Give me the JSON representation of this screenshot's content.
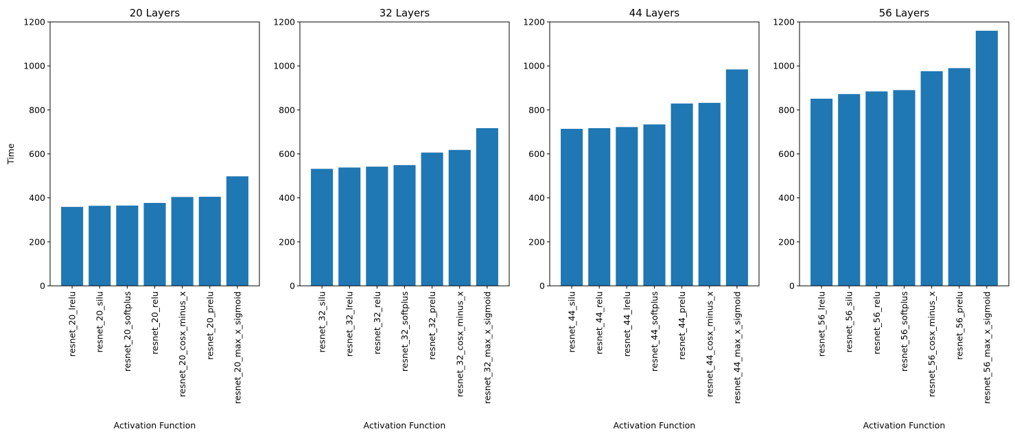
{
  "chart_data": [
    {
      "type": "bar",
      "title": "20 Layers",
      "xlabel": "Activation Function",
      "ylabel": "Time",
      "ylim": [
        0,
        1200
      ],
      "yticks": [
        0,
        200,
        400,
        600,
        800,
        1000,
        1200
      ],
      "grid": false,
      "color": "#1f77b4",
      "categories": [
        "resnet_20_lrelu",
        "resnet_20_silu",
        "resnet_20_softplus",
        "resnet_20_relu",
        "resnet_20_cosx_minus_x",
        "resnet_20_prelu",
        "resnet_20_max_x_sigmoid"
      ],
      "values": [
        359,
        364,
        365,
        377,
        404,
        405,
        498
      ]
    },
    {
      "type": "bar",
      "title": "32 Layers",
      "xlabel": "Activation Function",
      "ylabel": "",
      "ylim": [
        0,
        1200
      ],
      "yticks": [
        0,
        200,
        400,
        600,
        800,
        1000,
        1200
      ],
      "grid": false,
      "color": "#1f77b4",
      "categories": [
        "resnet_32_silu",
        "resnet_32_lrelu",
        "resnet_32_relu",
        "resnet_32_softplus",
        "resnet_32_prelu",
        "resnet_32_cosx_minus_x",
        "resnet_32_max_x_sigmoid"
      ],
      "values": [
        532,
        538,
        542,
        549,
        606,
        618,
        717
      ]
    },
    {
      "type": "bar",
      "title": "44 Layers",
      "xlabel": "Activation Function",
      "ylabel": "",
      "ylim": [
        0,
        1200
      ],
      "yticks": [
        0,
        200,
        400,
        600,
        800,
        1000,
        1200
      ],
      "grid": false,
      "color": "#1f77b4",
      "categories": [
        "resnet_44_silu",
        "resnet_44_relu",
        "resnet_44_lrelu",
        "resnet_44_softplus",
        "resnet_44_prelu",
        "resnet_44_cosx_minus_x",
        "resnet_44_max_x_sigmoid"
      ],
      "values": [
        714,
        717,
        722,
        734,
        829,
        832,
        984
      ]
    },
    {
      "type": "bar",
      "title": "56 Layers",
      "xlabel": "Activation Function",
      "ylabel": "",
      "ylim": [
        0,
        1200
      ],
      "yticks": [
        0,
        200,
        400,
        600,
        800,
        1000,
        1200
      ],
      "grid": false,
      "color": "#1f77b4",
      "categories": [
        "resnet_56_lrelu",
        "resnet_56_silu",
        "resnet_56_relu",
        "resnet_56_softplus",
        "resnet_56_cosx_minus_x",
        "resnet_56_prelu",
        "resnet_56_max_x_sigmoid"
      ],
      "values": [
        851,
        872,
        884,
        890,
        976,
        990,
        1160
      ]
    }
  ]
}
